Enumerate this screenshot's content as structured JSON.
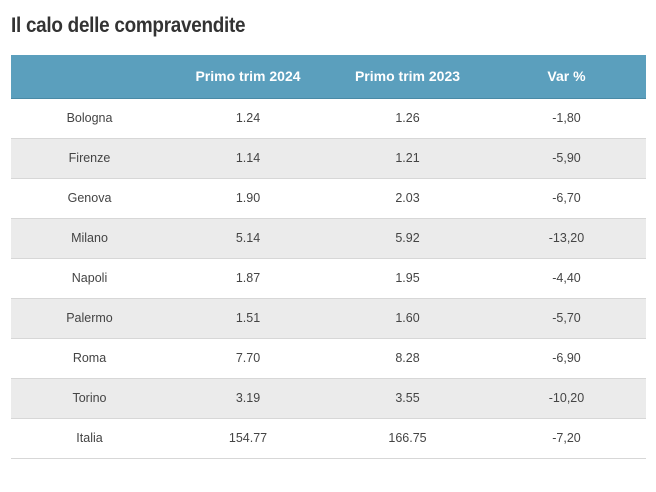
{
  "title": "Il calo delle compravendite",
  "chart_data": {
    "type": "table",
    "title": "Il calo delle compravendite",
    "columns": [
      "",
      "Primo trim 2024",
      "Primo trim 2023",
      "Var %"
    ],
    "rows": [
      [
        "Bologna",
        "1.24",
        "1.26",
        "-1,80"
      ],
      [
        "Firenze",
        "1.14",
        "1.21",
        "-5,90"
      ],
      [
        "Genova",
        "1.90",
        "2.03",
        "-6,70"
      ],
      [
        "Milano",
        "5.14",
        "5.92",
        "-13,20"
      ],
      [
        "Napoli",
        "1.87",
        "1.95",
        "-4,40"
      ],
      [
        "Palermo",
        "1.51",
        "1.60",
        "-5,70"
      ],
      [
        "Roma",
        "7.70",
        "8.28",
        "-6,90"
      ],
      [
        "Torino",
        "3.19",
        "3.55",
        "-10,20"
      ],
      [
        "Italia",
        "154.77",
        "166.75",
        "-7,20"
      ]
    ]
  },
  "colors": {
    "header_bg": "#5b9fbd",
    "header_text": "#ffffff",
    "stripe": "#ebebeb",
    "text": "#444444"
  }
}
